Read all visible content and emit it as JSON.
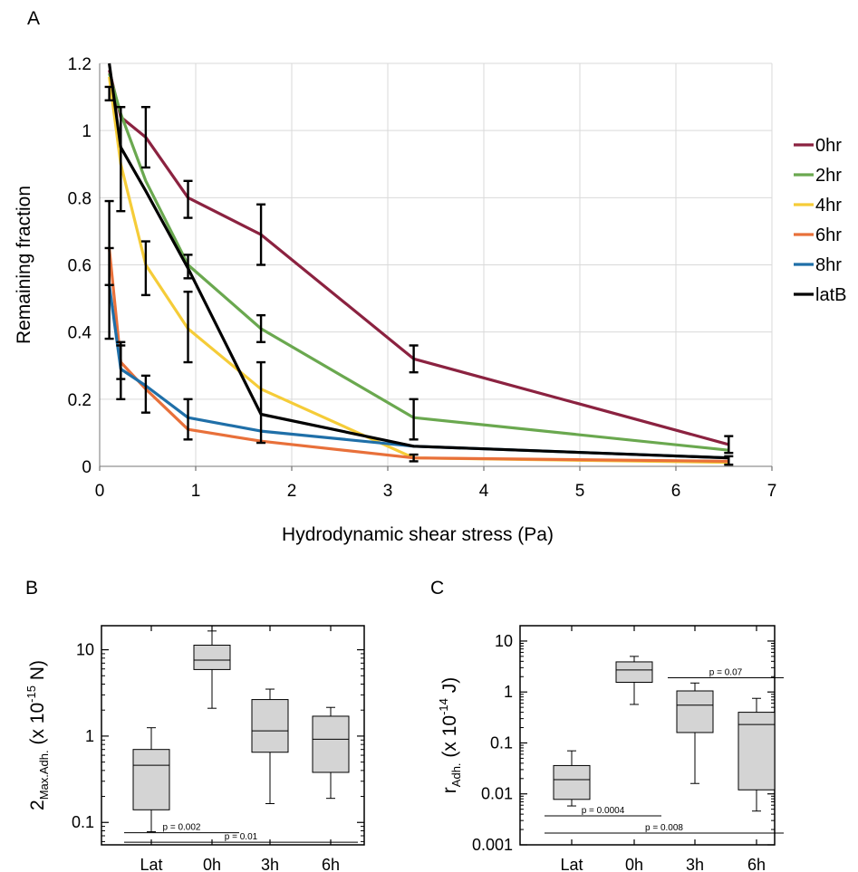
{
  "chart_data": [
    {
      "panel": "A",
      "type": "line",
      "xlabel": "Hydrodynamic shear stress (Pa)",
      "ylabel": "Remaining fraction",
      "xlim": [
        0,
        7
      ],
      "ylim": [
        0,
        1.2
      ],
      "x_ticks": [
        "0",
        "1",
        "2",
        "3",
        "4",
        "5",
        "6",
        "7"
      ],
      "y_ticks": [
        "0",
        "0.2",
        "0.4",
        "0.6",
        "0.8",
        "1",
        "1.2"
      ],
      "x": [
        0.1,
        0.22,
        0.48,
        0.92,
        1.68,
        3.27,
        6.55
      ],
      "grid": true,
      "legend_position": "right",
      "series": [
        {
          "name": "0hr",
          "color": "#8b2240",
          "values": [
            1.18,
            1.04,
            0.98,
            0.8,
            0.69,
            0.32,
            0.065
          ]
        },
        {
          "name": "2hr",
          "color": "#6aa84f",
          "values": [
            1.17,
            1.05,
            0.85,
            0.6,
            0.41,
            0.145,
            0.048
          ]
        },
        {
          "name": "4hr",
          "color": "#f5cc38",
          "values": [
            1.16,
            0.9,
            0.6,
            0.41,
            0.23,
            0.025,
            0.012
          ]
        },
        {
          "name": "6hr",
          "color": "#e8703a",
          "values": [
            0.65,
            0.31,
            0.23,
            0.11,
            0.075,
            0.025,
            0.015
          ]
        },
        {
          "name": "8hr",
          "color": "#1f6fa8",
          "values": [
            0.54,
            0.29,
            0.24,
            0.145,
            0.105,
            0.06,
            0.025
          ]
        },
        {
          "name": "latB",
          "color": "#000000",
          "values": [
            1.2,
            0.95,
            0.82,
            0.59,
            0.155,
            0.06,
            0.025
          ]
        }
      ],
      "error_bars": [
        {
          "x": 0.1,
          "low": 1.09,
          "high": 1.13
        },
        {
          "x": 0.1,
          "low": 0.54,
          "high": 0.79
        },
        {
          "x": 0.1,
          "low": 0.38,
          "high": 0.65
        },
        {
          "x": 0.22,
          "low": 0.76,
          "high": 1.07
        },
        {
          "x": 0.22,
          "low": 0.2,
          "high": 0.37
        },
        {
          "x": 0.22,
          "low": 0.26,
          "high": 0.36
        },
        {
          "x": 0.48,
          "low": 0.89,
          "high": 1.07
        },
        {
          "x": 0.48,
          "low": 0.51,
          "high": 0.67
        },
        {
          "x": 0.48,
          "low": 0.16,
          "high": 0.27
        },
        {
          "x": 0.92,
          "low": 0.74,
          "high": 0.85
        },
        {
          "x": 0.92,
          "low": 0.56,
          "high": 0.63
        },
        {
          "x": 0.92,
          "low": 0.31,
          "high": 0.52
        },
        {
          "x": 0.92,
          "low": 0.08,
          "high": 0.2
        },
        {
          "x": 1.68,
          "low": 0.6,
          "high": 0.78
        },
        {
          "x": 1.68,
          "low": 0.37,
          "high": 0.45
        },
        {
          "x": 1.68,
          "low": 0.07,
          "high": 0.31
        },
        {
          "x": 3.27,
          "low": 0.28,
          "high": 0.36
        },
        {
          "x": 3.27,
          "low": 0.08,
          "high": 0.2
        },
        {
          "x": 3.27,
          "low": 0.015,
          "high": 0.035
        },
        {
          "x": 6.55,
          "low": 0.04,
          "high": 0.09
        },
        {
          "x": 6.55,
          "low": 0.005,
          "high": 0.03
        }
      ]
    },
    {
      "panel": "B",
      "type": "boxplot",
      "ylabel_parts": {
        "main": "2",
        "sub": "Max.Adh.",
        "pre": " (x 10",
        "exp": "-15",
        "overlap": "-6",
        "post": " N)"
      },
      "yscale": "log",
      "ylim": [
        0.055,
        19
      ],
      "y_ticks": [
        {
          "value": 0.1,
          "label": "0.1"
        },
        {
          "value": 1,
          "label": "1"
        },
        {
          "value": 10,
          "label": "10"
        }
      ],
      "categories": [
        "Lat",
        "0h",
        "3h",
        "6h"
      ],
      "boxes": [
        {
          "min": 0.078,
          "q1": 0.14,
          "median": 0.46,
          "q3": 0.7,
          "max": 1.25
        },
        {
          "min": 2.1,
          "q1": 5.9,
          "median": 7.6,
          "q3": 11.3,
          "max": 16.5
        },
        {
          "min": 0.165,
          "q1": 0.65,
          "median": 1.15,
          "q3": 2.65,
          "max": 3.5
        },
        {
          "min": 0.19,
          "q1": 0.38,
          "median": 0.92,
          "q3": 1.7,
          "max": 2.15
        }
      ],
      "significance": [
        {
          "from": "Lat",
          "to": "0h",
          "label": "p = 0.002",
          "y": 0.076
        },
        {
          "from": "Lat",
          "to": "6h",
          "label": "p = 0.01",
          "y": 0.059
        }
      ]
    },
    {
      "panel": "C",
      "type": "boxplot",
      "ylabel_parts": {
        "main": "r",
        "sub": "Adh.",
        "pre": " (x 10",
        "exp": "-14",
        "post": " J)"
      },
      "yscale": "log",
      "ylim": [
        0.001,
        20
      ],
      "y_ticks": [
        {
          "value": 0.001,
          "label": "0.001"
        },
        {
          "value": 0.01,
          "label": "0.01"
        },
        {
          "value": 0.1,
          "label": "0.1"
        },
        {
          "value": 1,
          "label": "1"
        },
        {
          "value": 10,
          "label": "10"
        }
      ],
      "categories": [
        "Lat",
        "0h",
        "3h",
        "6h"
      ],
      "boxes": [
        {
          "min": 0.0058,
          "q1": 0.0078,
          "median": 0.019,
          "q3": 0.036,
          "max": 0.07
        },
        {
          "min": 0.57,
          "q1": 1.55,
          "median": 2.7,
          "q3": 3.9,
          "max": 5.0
        },
        {
          "min": 0.016,
          "q1": 0.16,
          "median": 0.55,
          "q3": 1.05,
          "max": 1.5
        },
        {
          "min": 0.0046,
          "q1": 0.012,
          "median": 0.23,
          "q3": 0.4,
          "max": 0.75
        }
      ],
      "significance": [
        {
          "from": "3h",
          "to": "6h",
          "label": "p = 0.07",
          "y": 1.9
        },
        {
          "from": "Lat",
          "to": "0h",
          "label": "p = 0.0004",
          "y": 0.0037
        },
        {
          "from": "Lat",
          "to": "6h",
          "label": "p = 0.008",
          "y": 0.0017
        }
      ]
    }
  ],
  "labels": {
    "panel_a": "A",
    "panel_b": "B",
    "panel_c": "C"
  }
}
